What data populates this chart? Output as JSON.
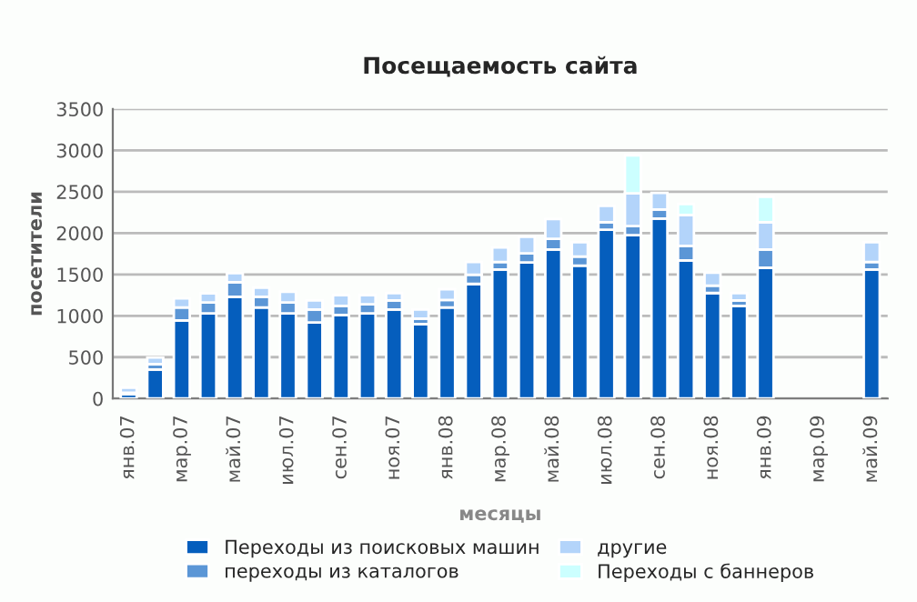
{
  "chart_data": {
    "type": "bar",
    "title": "Посещаемость сайта",
    "xlabel": "месяцы",
    "ylabel": "посетители",
    "categories": [
      "янв.07",
      null,
      "мар.07",
      null,
      "май.07",
      null,
      "июл.07",
      null,
      "сен.07",
      null,
      "ноя.07",
      null,
      "янв.08",
      null,
      "мар.08",
      null,
      "май.08",
      null,
      "июл.08",
      null,
      "сен.08",
      null,
      "ноя.08",
      null,
      "янв.09",
      null,
      "мар.09",
      null,
      "май.09"
    ],
    "stacked": true,
    "series": [
      {
        "name": "Переходы из поисковых машин",
        "color": "#055ebd",
        "values": [
          50,
          350,
          945,
          1030,
          1230,
          1100,
          1030,
          920,
          1010,
          1030,
          1075,
          900,
          1100,
          1385,
          1560,
          1645,
          1800,
          1605,
          2040,
          1975,
          2175,
          1670,
          1275,
          1120,
          1580,
          null,
          null,
          null,
          1560
        ]
      },
      {
        "name": "переходы из каталогов",
        "color": "#5b96d6",
        "values": [
          20,
          65,
          155,
          130,
          175,
          130,
          130,
          155,
          110,
          110,
          110,
          65,
          90,
          110,
          90,
          110,
          130,
          110,
          90,
          110,
          110,
          175,
          90,
          65,
          220,
          null,
          null,
          null,
          90
        ]
      },
      {
        "name": "другие",
        "color": "#b3d4fa",
        "values": [
          60,
          80,
          110,
          110,
          110,
          110,
          130,
          110,
          130,
          110,
          90,
          110,
          130,
          155,
          175,
          200,
          240,
          175,
          200,
          395,
          200,
          375,
          155,
          90,
          330,
          null,
          null,
          null,
          240
        ]
      },
      {
        "name": "Переходы с баннеров",
        "color": "#ccffff",
        "values": [
          null,
          null,
          null,
          null,
          null,
          null,
          null,
          null,
          null,
          null,
          null,
          null,
          null,
          null,
          null,
          null,
          null,
          null,
          null,
          460,
          null,
          130,
          null,
          null,
          310,
          null,
          null,
          null,
          null
        ]
      }
    ],
    "ylim": [
      0,
      3500
    ],
    "yticks": [
      0,
      500,
      1000,
      1500,
      2000,
      2500,
      3000,
      3500
    ],
    "grid": "y",
    "legend": "bottom"
  }
}
